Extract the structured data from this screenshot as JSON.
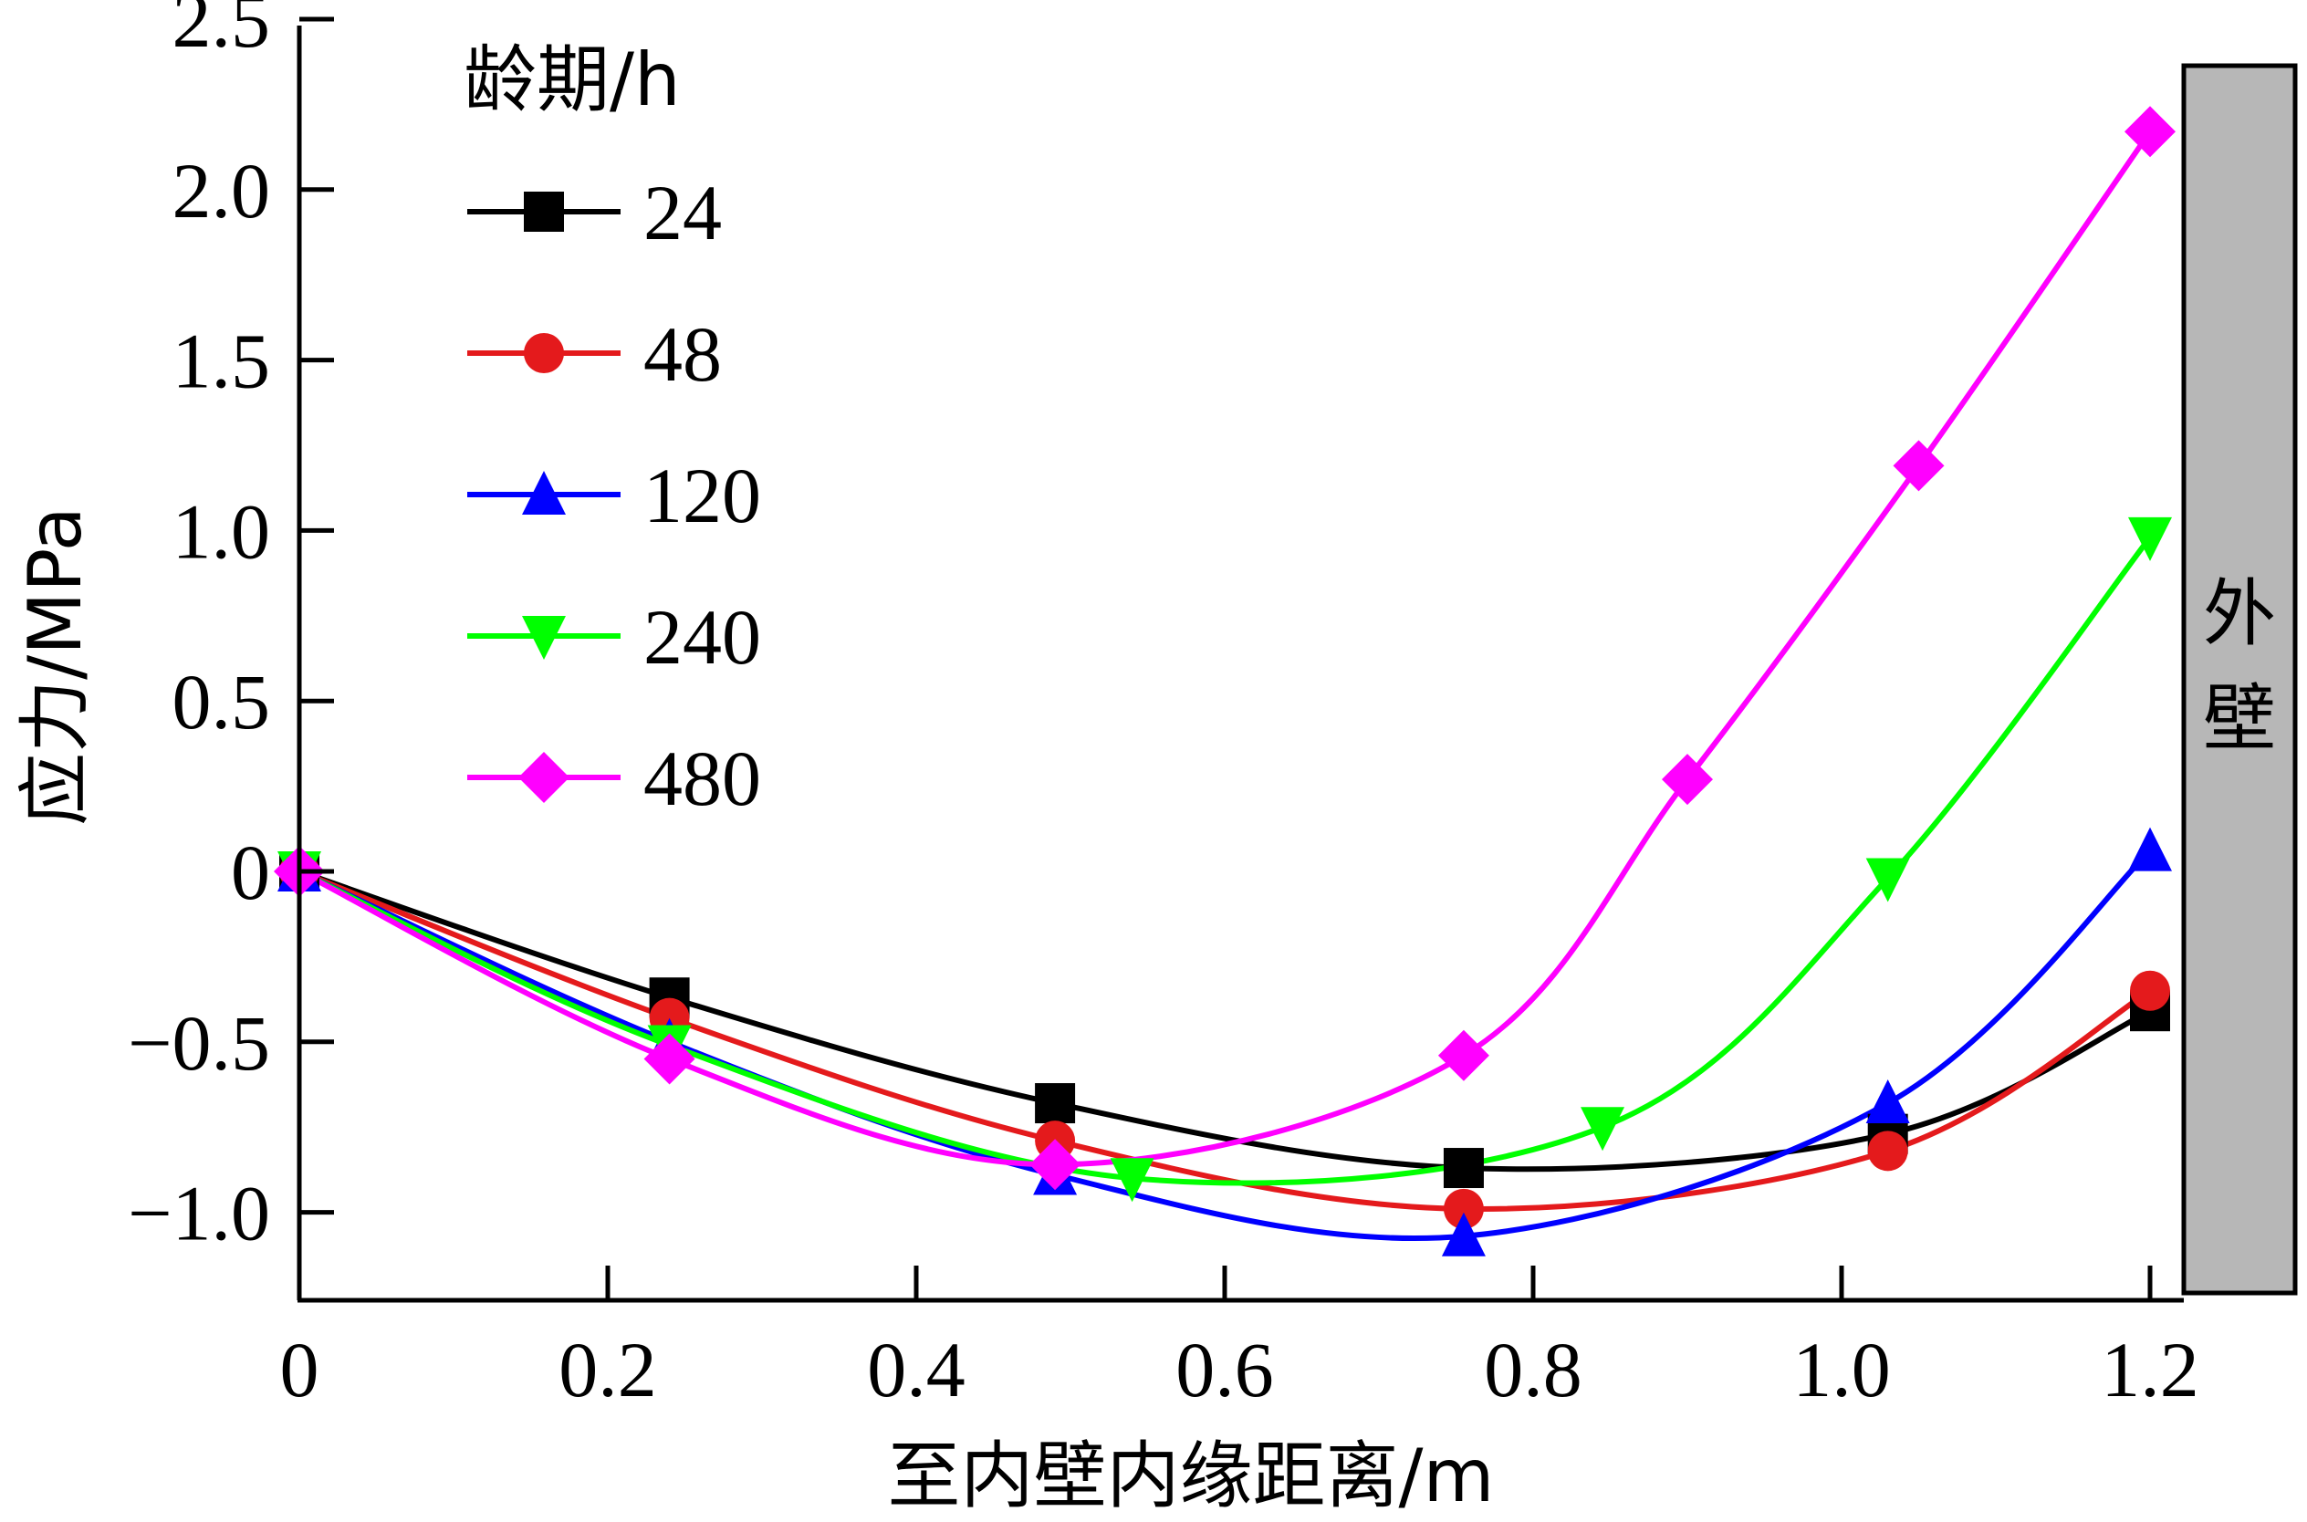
{
  "chart_data": {
    "type": "line",
    "xlabel": "至内壁内缘距离/m",
    "ylabel": "应力/MPa",
    "xlim": [
      0,
      1.2
    ],
    "ylim": [
      -1.25,
      2.5
    ],
    "x_ticks": [
      "0",
      "0.2",
      "0.4",
      "0.6",
      "0.8",
      "1.0",
      "1.2"
    ],
    "y_ticks": [
      "−1.0",
      "−0.5",
      "0",
      "0.5",
      "1.0",
      "1.5",
      "2.0",
      "2.5"
    ],
    "legend_title": "龄期/h",
    "legend_position": "top-left",
    "grid": false,
    "wall_label": "外壁",
    "series": [
      {
        "name": "24",
        "color": "#000000",
        "marker": "square",
        "points": [
          [
            0,
            0
          ],
          [
            0.24,
            -0.37
          ],
          [
            0.49,
            -0.68
          ],
          [
            0.755,
            -0.87
          ],
          [
            1.03,
            -0.77
          ],
          [
            1.2,
            -0.41
          ]
        ]
      },
      {
        "name": "48",
        "color": "#e41a1c",
        "marker": "circle",
        "points": [
          [
            0,
            0
          ],
          [
            0.24,
            -0.43
          ],
          [
            0.49,
            -0.79
          ],
          [
            0.755,
            -0.99
          ],
          [
            1.03,
            -0.82
          ],
          [
            1.2,
            -0.35
          ]
        ]
      },
      {
        "name": "120",
        "color": "#0000ff",
        "marker": "triangle-up",
        "points": [
          [
            0,
            0
          ],
          [
            0.24,
            -0.5
          ],
          [
            0.49,
            -0.89
          ],
          [
            0.755,
            -1.07
          ],
          [
            1.03,
            -0.68
          ],
          [
            1.2,
            0.06
          ]
        ]
      },
      {
        "name": "240",
        "color": "#00ff00",
        "marker": "triangle-down",
        "points": [
          [
            0,
            0
          ],
          [
            0.24,
            -0.51
          ],
          [
            0.54,
            -0.9
          ],
          [
            0.845,
            -0.75
          ],
          [
            1.03,
            -0.02
          ],
          [
            1.2,
            0.98
          ]
        ]
      },
      {
        "name": "480",
        "color": "#ff00ff",
        "marker": "diamond",
        "points": [
          [
            0,
            0
          ],
          [
            0.24,
            -0.55
          ],
          [
            0.49,
            -0.86
          ],
          [
            0.755,
            -0.54
          ],
          [
            0.9,
            0.27
          ],
          [
            1.05,
            1.19
          ],
          [
            1.2,
            2.17
          ]
        ]
      }
    ]
  }
}
